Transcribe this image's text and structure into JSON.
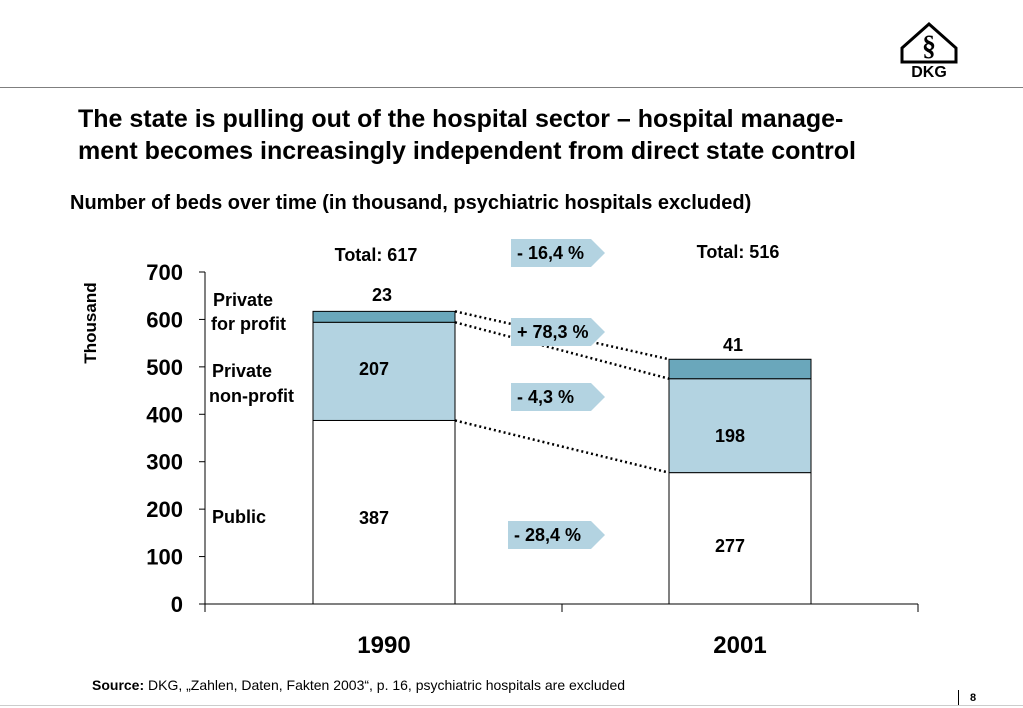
{
  "header": {
    "title_line1": "The state is pulling out of the hospital sector – hospital manage-",
    "title_line2": "ment becomes increasingly independent from direct state control",
    "subtitle": "Number of beds over time (in thousand, psychiatric hospitals excluded)"
  },
  "logo": {
    "text": "DKG",
    "symbol": "§"
  },
  "footer": {
    "source_label": "Source:",
    "source_text": " DKG, „Zahlen, Daten, Fakten 2003“, p. 16, psychiatric hospitals are excluded",
    "page_number": "8"
  },
  "chart_data": {
    "type": "bar",
    "stacked": true,
    "categories": [
      "1990",
      "2001"
    ],
    "ylabel": "Thousand",
    "ylim": [
      0,
      700
    ],
    "yticks": [
      "0",
      "100",
      "200",
      "300",
      "400",
      "500",
      "600",
      "700"
    ],
    "series": [
      {
        "name": "Public",
        "values": [
          387,
          277
        ],
        "labels": [
          "387",
          "277"
        ],
        "color": "#ffffff"
      },
      {
        "name": "Private non-profit",
        "values": [
          207,
          198
        ],
        "labels": [
          "207",
          "198"
        ],
        "color": "#b3d3e1"
      },
      {
        "name": "Private for profit",
        "values": [
          23,
          41
        ],
        "labels": [
          "23",
          "41"
        ],
        "color": "#6aa7bb"
      }
    ],
    "series_labels": {
      "public": "Public",
      "nonprofit_line1": "Private",
      "nonprofit_line2": "non-profit",
      "forprofit_line1": "Private",
      "forprofit_line2": "for profit"
    },
    "totals": [
      "Total: 617",
      "Total: 516"
    ],
    "changes": {
      "total": "- 16,4 %",
      "forprofit": "+ 78,3 %",
      "nonprofit": "-  4,3 %",
      "public": "- 28,4 %"
    },
    "arrow_color": "#b3d3e1",
    "grid": false
  }
}
